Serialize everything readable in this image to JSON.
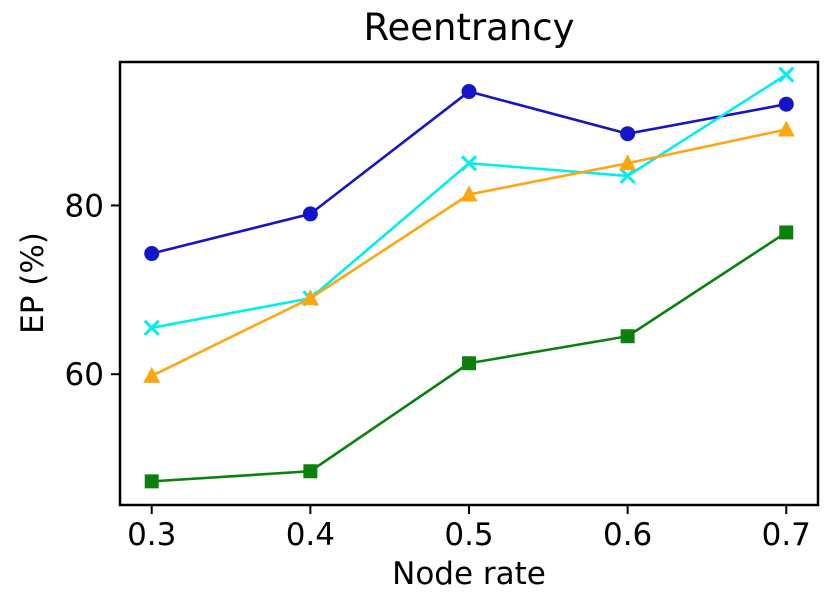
{
  "chart_data": {
    "type": "line",
    "title": "Reentrancy",
    "xlabel": "Node rate",
    "ylabel": "EP (%)",
    "x": [
      0.3,
      0.4,
      0.5,
      0.6,
      0.7
    ],
    "xlim": [
      0.28,
      0.72
    ],
    "ylim": [
      44.5,
      97
    ],
    "xticks": [
      "0.3",
      "0.4",
      "0.5",
      "0.6",
      "0.7"
    ],
    "xtick_values": [
      0.3,
      0.4,
      0.5,
      0.6,
      0.7
    ],
    "yticks": [
      "60",
      "80"
    ],
    "ytick_values": [
      60,
      80
    ],
    "grid": false,
    "legend": "none",
    "axis_color": "#000000",
    "series": [
      {
        "name": "series-blue-circle",
        "color": "#1414c8",
        "marker": "circle",
        "values": [
          74.3,
          79.0,
          93.5,
          88.5,
          92.0
        ]
      },
      {
        "name": "series-cyan-x",
        "color": "#00eeee",
        "marker": "x",
        "values": [
          65.5,
          69.0,
          85.0,
          83.5,
          95.5
        ]
      },
      {
        "name": "series-orange-triangle",
        "color": "#ffa510",
        "marker": "triangle",
        "values": [
          59.8,
          69.0,
          81.3,
          85.0,
          89.0
        ]
      },
      {
        "name": "series-green-square",
        "color": "#0c800c",
        "marker": "square",
        "values": [
          47.3,
          48.5,
          61.3,
          64.5,
          76.8
        ]
      }
    ]
  }
}
